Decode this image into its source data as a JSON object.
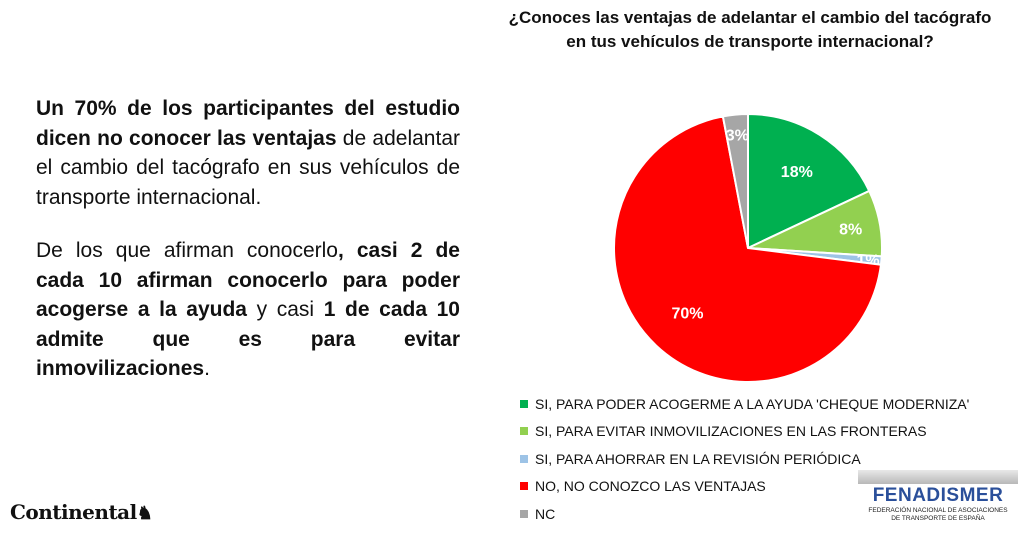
{
  "text": {
    "p1_bold": "Un 70% de los participantes del estudio dicen no conocer las ventajas",
    "p1_rest": " de adelantar el cambio del tacógrafo en sus vehículos de transporte internacional.",
    "p2_a": "De los que afirman conocerlo",
    "p2_b": ", casi 2 de cada 10 afirman conocerlo para poder acogerse a la ayuda",
    "p2_c": " y casi ",
    "p2_d": "1 de cada 10 admite que es para evitar inmovilizaciones",
    "p2_e": "."
  },
  "chart_data": {
    "type": "pie",
    "title": "¿Conoces las ventajas de adelantar el cambio del tacógrafo en tus vehículos de transporte internacional?",
    "slices": [
      {
        "label": "SI, PARA PODER ACOGERME A LA AYUDA 'CHEQUE MODERNIZA'",
        "value": 18,
        "value_label": "18%",
        "color": "#00b050"
      },
      {
        "label": "SI, PARA EVITAR INMOVILIZACIONES EN LAS FRONTERAS",
        "value": 8,
        "value_label": "8%",
        "color": "#92d050"
      },
      {
        "label": "SI, PARA AHORRAR EN LA REVISIÓN PERIÓDICA",
        "value": 1,
        "value_label": "1%",
        "color": "#9dc3e6"
      },
      {
        "label": "NO, NO CONOZCO LAS VENTAJAS",
        "value": 70,
        "value_label": "70%",
        "color": "#ff0000"
      },
      {
        "label": "NC",
        "value": 3,
        "value_label": "3%",
        "color": "#a6a6a6"
      }
    ],
    "legend_position": "bottom"
  },
  "logos": {
    "continental": "Continental",
    "fenadismer_name": "FENADISMER",
    "fenadismer_sub1": "FEDERACIÓN NACIONAL DE ASOCIACIONES",
    "fenadismer_sub2": "DE TRANSPORTE DE ESPAÑA"
  }
}
